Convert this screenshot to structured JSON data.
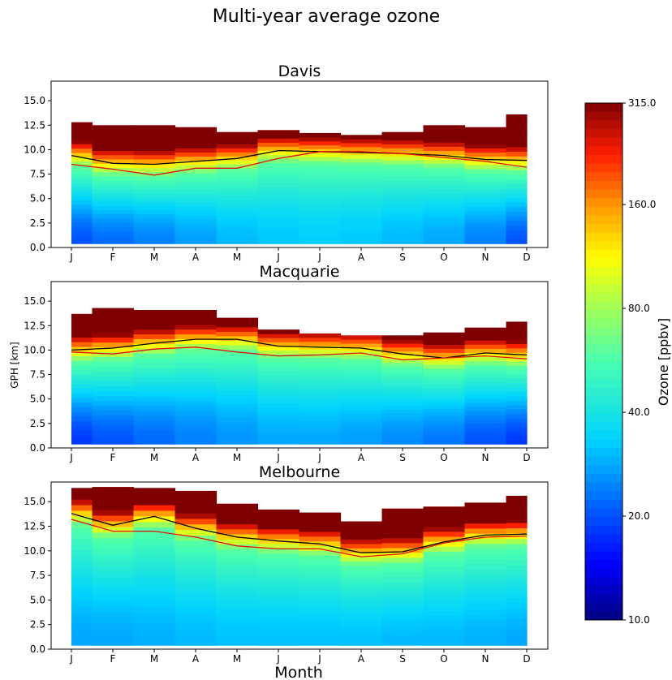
{
  "figure": {
    "suptitle": "Multi-year average ozone",
    "xlabel": "Month",
    "ylabel": "GPH [km]"
  },
  "chart_data": [
    {
      "type": "contour",
      "title": "Davis",
      "categories": [
        "J",
        "F",
        "M",
        "A",
        "M",
        "J",
        "J",
        "A",
        "S",
        "O",
        "N",
        "D"
      ],
      "ylim": [
        0,
        17
      ],
      "yticks": [
        "0.0",
        "2.5",
        "5.0",
        "7.5",
        "10.0",
        "12.5",
        "15.0"
      ],
      "top_km": [
        12.8,
        12.5,
        12.5,
        12.3,
        11.8,
        12.0,
        11.7,
        11.5,
        11.8,
        12.5,
        12.3,
        13.6
      ],
      "series": [
        {
          "color": "#000000",
          "values": [
            9.4,
            8.6,
            8.5,
            8.8,
            9.1,
            9.9,
            9.8,
            9.7,
            9.6,
            9.4,
            9.0,
            8.9
          ]
        },
        {
          "color": "#e01010",
          "values": [
            8.5,
            8.0,
            7.4,
            8.1,
            8.1,
            9.1,
            9.8,
            9.8,
            9.6,
            9.2,
            8.8,
            8.2
          ]
        }
      ],
      "surface_o3_ppbv": [
        20,
        22,
        24,
        27,
        30,
        32,
        33,
        32,
        30,
        28,
        24,
        20
      ]
    },
    {
      "type": "contour",
      "title": "Macquarie",
      "categories": [
        "J",
        "F",
        "M",
        "A",
        "M",
        "J",
        "J",
        "A",
        "S",
        "O",
        "N",
        "D"
      ],
      "ylim": [
        0,
        17
      ],
      "yticks": [
        "0.0",
        "2.5",
        "5.0",
        "7.5",
        "10.0",
        "12.5",
        "15.0"
      ],
      "top_km": [
        13.7,
        14.3,
        14.1,
        14.1,
        13.3,
        12.1,
        11.7,
        11.5,
        11.5,
        11.8,
        12.3,
        12.9
      ],
      "series": [
        {
          "color": "#000000",
          "values": [
            10.0,
            10.2,
            10.7,
            11.1,
            11.1,
            10.4,
            10.3,
            10.2,
            9.6,
            9.2,
            9.7,
            9.5
          ]
        },
        {
          "color": "#e01010",
          "values": [
            9.8,
            9.6,
            10.1,
            10.3,
            9.8,
            9.4,
            9.5,
            9.7,
            9.0,
            9.2,
            9.4,
            9.1
          ]
        }
      ],
      "surface_o3_ppbv": [
        18,
        20,
        22,
        24,
        26,
        28,
        28,
        27,
        25,
        23,
        20,
        18
      ]
    },
    {
      "type": "contour",
      "title": "Melbourne",
      "categories": [
        "J",
        "F",
        "M",
        "A",
        "M",
        "J",
        "J",
        "A",
        "S",
        "O",
        "N",
        "D"
      ],
      "ylim": [
        0,
        17
      ],
      "yticks": [
        "0.0",
        "2.5",
        "5.0",
        "7.5",
        "10.0",
        "12.5",
        "15.0"
      ],
      "top_km": [
        16.4,
        16.5,
        16.4,
        16.1,
        14.8,
        14.2,
        13.9,
        13.0,
        14.3,
        14.5,
        14.9,
        15.6
      ],
      "series": [
        {
          "color": "#000000",
          "values": [
            13.8,
            12.6,
            13.5,
            12.3,
            11.4,
            11.0,
            10.7,
            9.8,
            9.9,
            10.9,
            11.6,
            11.7
          ]
        },
        {
          "color": "#e01010",
          "values": [
            13.2,
            12.0,
            12.0,
            11.4,
            10.5,
            10.2,
            10.2,
            9.4,
            9.7,
            10.8,
            11.4,
            11.5
          ]
        }
      ],
      "surface_o3_ppbv": [
        28,
        28,
        29,
        30,
        31,
        31,
        31,
        31,
        30,
        30,
        29,
        28
      ]
    }
  ],
  "colorbar": {
    "label": "Ozone [ppbv]",
    "ticks": [
      "10.0",
      "20.0",
      "40.0",
      "80.0",
      "160.0",
      "315.0"
    ],
    "tick_values": [
      10,
      20,
      40,
      80,
      160,
      315
    ],
    "scale": "log",
    "colormap": "jet"
  }
}
